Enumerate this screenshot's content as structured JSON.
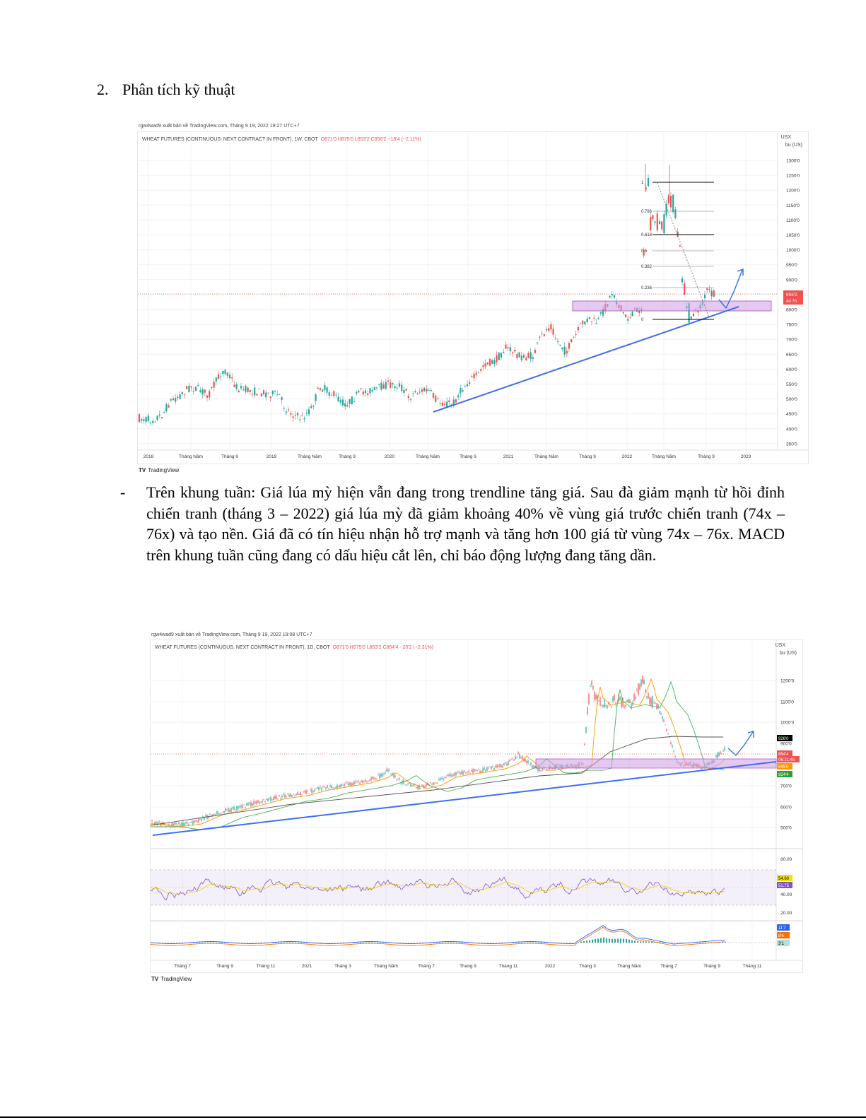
{
  "heading": {
    "number": "2.",
    "text": "Phân tích kỹ thuật"
  },
  "chart1": {
    "publisher_line": "rgw4wad9 xuất bản về TradingView.com, Tháng 9 19, 2022 19:27 UTC+7",
    "symbol_line": "WHEAT FUTURES (CONTINUOUS: NEXT CONTRACT IN FRONT), 1W, CBOT",
    "ohlc": "O871'0  H875'0  L853'2  C856'2  −18'4 (−2.11%)",
    "currency": "USX",
    "unit": "bu (US)",
    "price_ticks": [
      "1300'0",
      "1250'0",
      "1200'0",
      "1150'0",
      "1100'0",
      "1050'0",
      "1000'0",
      "950'0",
      "900'0",
      "850'0",
      "800'0",
      "750'0",
      "700'0",
      "650'0",
      "600'0",
      "550'0",
      "500'0",
      "450'0",
      "400'0",
      "350'0"
    ],
    "last_price": "856'2",
    "countdown": "4d 7h",
    "time_labels": [
      "2018",
      "Tháng Năm",
      "Tháng 9",
      "2019",
      "Tháng Năm",
      "Tháng 9",
      "2020",
      "Tháng Năm",
      "Tháng 9",
      "2021",
      "Tháng Năm",
      "Tháng 9",
      "2022",
      "Tháng Năm",
      "Tháng 9",
      "2023"
    ],
    "fib_labels": [
      "1",
      "0.786",
      "0.618",
      "0.5",
      "0.382",
      "0.236",
      "0"
    ],
    "logo": "TradingView",
    "colors": {
      "up": "#26a69a",
      "down": "#ef5350",
      "trend": "#3d6ff0",
      "zone": "#cf9ce6",
      "arrow": "#2f6fe4"
    }
  },
  "paragraph": {
    "bullet": "-",
    "text": "Trên khung tuần: Giá lúa mỳ hiện vẫn đang trong trendline tăng giá. Sau đà giảm mạnh từ hồi đỉnh chiến tranh (tháng 3 – 2022) giá lúa mỳ đã giảm khoảng 40% về vùng giá trước chiến tranh (74x – 76x) và tạo nền. Giá đã có tín hiệu nhận hỗ trợ mạnh và tăng hơn 100 giá từ vùng 74x – 76x. MACD trên khung tuần cũng đang có dấu hiệu cắt lên, chỉ báo động lượng đang tăng dần."
  },
  "chart2": {
    "publisher_line": "rgw4wad9 xuất bản về TradingView.com, Tháng 9 19, 2022 19:08 UTC+7",
    "symbol_line": "WHEAT FUTURES (CONTINUOUS: NEXT CONTRACT IN FRONT), 1D, CBOT",
    "ohlc": "O871'0  H875'0  L853'2  C854'4  −20'2 (−2.31%)",
    "currency": "USX",
    "unit": "bu (US)",
    "price_ticks": [
      "1200'0",
      "1100'0",
      "1000'0",
      "900'0",
      "800'0",
      "700'0",
      "600'0",
      "500'0"
    ],
    "badges": [
      {
        "text": "926'0",
        "color": "#000000"
      },
      {
        "text": "854'4",
        "color": "#ef5350"
      },
      {
        "text": "06:21:45",
        "color": "#ef5350"
      },
      {
        "text": "845'0",
        "color": "#ff9800"
      },
      {
        "text": "824'4",
        "color": "#2e9d3a"
      }
    ],
    "rsi_ticks": [
      "80.00",
      "60.00",
      "40.00",
      "20.00"
    ],
    "rsi_badges": [
      {
        "text": "54.60",
        "color": "#f5e000"
      },
      {
        "text": "51.75",
        "color": "#7e57c2"
      }
    ],
    "macd_badges": [
      {
        "text": "11'7",
        "color": "#2962ff"
      },
      {
        "text": "8'6",
        "color": "#ff6d00"
      },
      {
        "text": "3'1",
        "color": "#b2dfdb"
      }
    ],
    "time_labels": [
      "Tháng 7",
      "Tháng 9",
      "Tháng 11",
      "2021",
      "Tháng 3",
      "Tháng Năm",
      "Tháng 7",
      "Tháng 9",
      "Tháng 11",
      "2022",
      "Tháng 3",
      "Tháng Năm",
      "Tháng 7",
      "Tháng 9",
      "Tháng 11"
    ],
    "logo": "TradingView"
  }
}
